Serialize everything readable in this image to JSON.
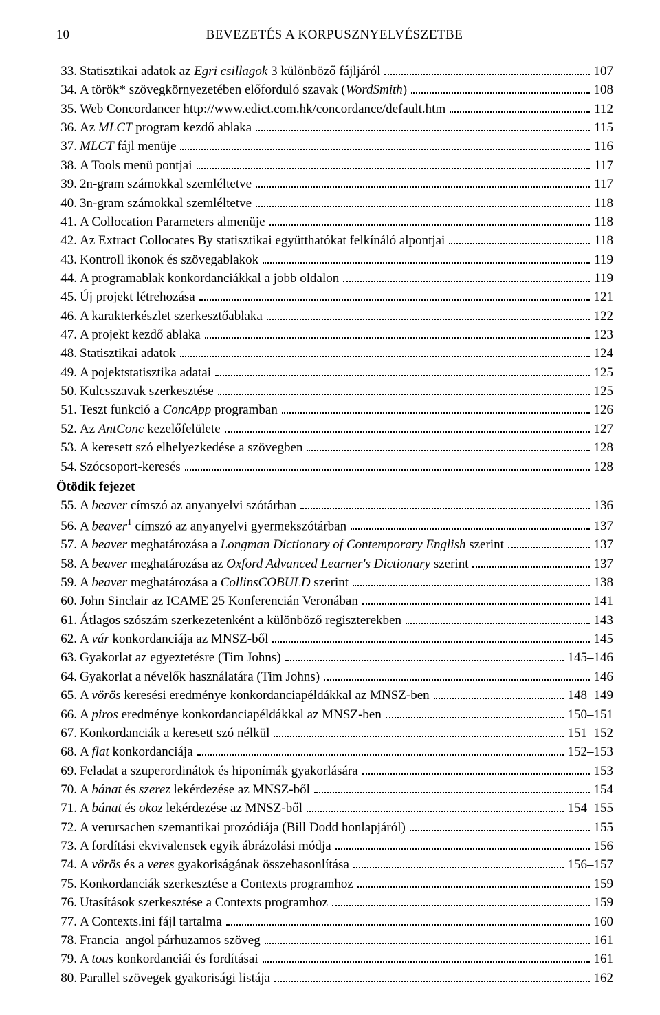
{
  "header": {
    "page_number": "10",
    "title": "BEVEZETÉS A KORPUSZNYELVÉSZETBE"
  },
  "sections": [
    {
      "title": null,
      "entries": [
        {
          "num": "33.",
          "parts": [
            {
              "t": "Statisztikai adatok az "
            },
            {
              "t": "Egri csillagok",
              "i": true
            },
            {
              "t": " 3 különböző fájljáról"
            }
          ],
          "page": "107"
        },
        {
          "num": "34.",
          "parts": [
            {
              "t": "A török* szövegkörnyezetében előforduló szavak ("
            },
            {
              "t": "WordSmith",
              "i": true
            },
            {
              "t": ")"
            }
          ],
          "page": "108"
        },
        {
          "num": "35.",
          "parts": [
            {
              "t": "Web Concordancer http://www.edict.com.hk/concordance/default.htm"
            }
          ],
          "page": "112"
        },
        {
          "num": "36.",
          "parts": [
            {
              "t": "Az "
            },
            {
              "t": "MLCT",
              "i": true
            },
            {
              "t": " program kezdő ablaka"
            }
          ],
          "page": "115"
        },
        {
          "num": "37.",
          "parts": [
            {
              "t": "MLCT",
              "i": true
            },
            {
              "t": " fájl menüje"
            }
          ],
          "page": "116"
        },
        {
          "num": "38.",
          "parts": [
            {
              "t": "A Tools menü pontjai"
            }
          ],
          "page": "117"
        },
        {
          "num": "39.",
          "parts": [
            {
              "t": "2n-gram számokkal szemléltetve"
            }
          ],
          "page": "117"
        },
        {
          "num": "40.",
          "parts": [
            {
              "t": "3n-gram számokkal szemléltetve"
            }
          ],
          "page": "118"
        },
        {
          "num": "41.",
          "parts": [
            {
              "t": "A Collocation Parameters almenüje"
            }
          ],
          "page": "118"
        },
        {
          "num": "42.",
          "parts": [
            {
              "t": "Az Extract Collocates By statisztikai együtthatókat felkínáló alpontjai"
            }
          ],
          "page": "118"
        },
        {
          "num": "43.",
          "parts": [
            {
              "t": "Kontroll ikonok és szövegablakok"
            }
          ],
          "page": "119"
        },
        {
          "num": "44.",
          "parts": [
            {
              "t": "A programablak konkordanciákkal a jobb oldalon"
            }
          ],
          "page": "119"
        },
        {
          "num": "45.",
          "parts": [
            {
              "t": "Új projekt létrehozása"
            }
          ],
          "page": "121"
        },
        {
          "num": "46.",
          "parts": [
            {
              "t": "A karakterkészlet szerkesztőablaka"
            }
          ],
          "page": "122"
        },
        {
          "num": "47.",
          "parts": [
            {
              "t": "A projekt kezdő ablaka"
            }
          ],
          "page": "123"
        },
        {
          "num": "48.",
          "parts": [
            {
              "t": "Statisztikai adatok"
            }
          ],
          "page": "124"
        },
        {
          "num": "49.",
          "parts": [
            {
              "t": "A pojektstatisztika adatai"
            }
          ],
          "page": "125"
        },
        {
          "num": "50.",
          "parts": [
            {
              "t": "Kulcsszavak szerkesztése"
            }
          ],
          "page": "125"
        },
        {
          "num": "51.",
          "parts": [
            {
              "t": "Teszt funkció a "
            },
            {
              "t": "ConcApp",
              "i": true
            },
            {
              "t": " programban"
            }
          ],
          "page": "126"
        },
        {
          "num": "52.",
          "parts": [
            {
              "t": "Az "
            },
            {
              "t": "AntConc",
              "i": true
            },
            {
              "t": " kezelőfelülete"
            }
          ],
          "page": "127"
        },
        {
          "num": "53.",
          "parts": [
            {
              "t": "A keresett szó elhelyezkedése a szövegben"
            }
          ],
          "page": "128"
        },
        {
          "num": "54.",
          "parts": [
            {
              "t": "Szócsoport-keresés"
            }
          ],
          "page": "128"
        }
      ]
    },
    {
      "title": "Ötödik fejezet",
      "entries": [
        {
          "num": "55.",
          "parts": [
            {
              "t": "A "
            },
            {
              "t": "beaver",
              "i": true
            },
            {
              "t": " címszó az anyanyelvi szótárban"
            }
          ],
          "page": "136"
        },
        {
          "num": "56.",
          "parts": [
            {
              "t": "A "
            },
            {
              "t": "beaver",
              "i": true
            },
            {
              "t": "1",
              "sup": true
            },
            {
              "t": " címszó az anyanyelvi gyermekszótárban"
            }
          ],
          "page": "137"
        },
        {
          "num": "57.",
          "parts": [
            {
              "t": "A "
            },
            {
              "t": "beaver",
              "i": true
            },
            {
              "t": " meghatározása a "
            },
            {
              "t": "Longman Dictionary of Contemporary English",
              "i": true
            },
            {
              "t": " szerint"
            }
          ],
          "page": "137"
        },
        {
          "num": "58.",
          "parts": [
            {
              "t": "A "
            },
            {
              "t": "beaver",
              "i": true
            },
            {
              "t": " meghatározása az "
            },
            {
              "t": "Oxford Advanced Learner's Dictionary",
              "i": true
            },
            {
              "t": " szerint"
            }
          ],
          "page": "137"
        },
        {
          "num": "59.",
          "parts": [
            {
              "t": "A "
            },
            {
              "t": "beaver",
              "i": true
            },
            {
              "t": " meghatározása a "
            },
            {
              "t": "CollinsCOBULD",
              "i": true
            },
            {
              "t": " szerint"
            }
          ],
          "page": "138"
        },
        {
          "num": "60.",
          "parts": [
            {
              "t": "John Sinclair az ICAME 25 Konferencián Veronában"
            }
          ],
          "page": "141"
        },
        {
          "num": "61.",
          "parts": [
            {
              "t": "Átlagos szószám szerkezetenként a különböző regiszterekben"
            }
          ],
          "page": "143"
        },
        {
          "num": "62.",
          "parts": [
            {
              "t": "A "
            },
            {
              "t": "vár",
              "i": true
            },
            {
              "t": " konkordanciája az MNSZ-ből"
            }
          ],
          "page": "145"
        },
        {
          "num": "63.",
          "parts": [
            {
              "t": "Gyakorlat az egyeztetésre (Tim Johns)"
            }
          ],
          "page": "145–146"
        },
        {
          "num": "64.",
          "parts": [
            {
              "t": "Gyakorlat a névelők használatára (Tim Johns)"
            }
          ],
          "page": "146"
        },
        {
          "num": "65.",
          "parts": [
            {
              "t": "A "
            },
            {
              "t": "vörös",
              "i": true
            },
            {
              "t": " keresési eredménye konkordanciapéldákkal az MNSZ-ben"
            }
          ],
          "page": "148–149"
        },
        {
          "num": "66.",
          "parts": [
            {
              "t": "A "
            },
            {
              "t": "piros",
              "i": true
            },
            {
              "t": " eredménye konkordanciapéldákkal az MNSZ-ben"
            }
          ],
          "page": "150–151"
        },
        {
          "num": "67.",
          "parts": [
            {
              "t": "Konkordanciák a keresett szó nélkül"
            }
          ],
          "page": "151–152"
        },
        {
          "num": "68.",
          "parts": [
            {
              "t": "A "
            },
            {
              "t": "flat",
              "i": true
            },
            {
              "t": " konkordanciája"
            }
          ],
          "page": "152–153"
        },
        {
          "num": "69.",
          "parts": [
            {
              "t": "Feladat a szuperordinátok és hiponímák gyakorlására"
            }
          ],
          "page": "153"
        },
        {
          "num": "70.",
          "parts": [
            {
              "t": "A "
            },
            {
              "t": "bánat",
              "i": true
            },
            {
              "t": " és "
            },
            {
              "t": "szerez",
              "i": true
            },
            {
              "t": " lekérdezése az MNSZ-ből"
            }
          ],
          "page": "154"
        },
        {
          "num": "71.",
          "parts": [
            {
              "t": "A "
            },
            {
              "t": "bánat",
              "i": true
            },
            {
              "t": " és "
            },
            {
              "t": "okoz",
              "i": true
            },
            {
              "t": " lekérdezése az MNSZ-ből"
            }
          ],
          "page": "154–155"
        },
        {
          "num": "72.",
          "parts": [
            {
              "t": "A verursachen szemantikai prozódiája (Bill Dodd honlapjáról)"
            }
          ],
          "page": "155"
        },
        {
          "num": "73.",
          "parts": [
            {
              "t": "A fordítási ekvivalensek egyik ábrázolási módja"
            }
          ],
          "page": "156"
        },
        {
          "num": "74.",
          "parts": [
            {
              "t": "A "
            },
            {
              "t": "vörös",
              "i": true
            },
            {
              "t": " és a "
            },
            {
              "t": "veres",
              "i": true
            },
            {
              "t": " gyakoriságának összehasonlítása"
            }
          ],
          "page": "156–157"
        },
        {
          "num": "75.",
          "parts": [
            {
              "t": "Konkordanciák szerkesztése a Contexts programhoz"
            }
          ],
          "page": "159"
        },
        {
          "num": "76.",
          "parts": [
            {
              "t": "Utasítások szerkesztése a Contexts programhoz"
            }
          ],
          "page": "159"
        },
        {
          "num": "77.",
          "parts": [
            {
              "t": "A Contexts.ini fájl tartalma"
            }
          ],
          "page": "160"
        },
        {
          "num": "78.",
          "parts": [
            {
              "t": "Francia–angol párhuzamos szöveg"
            }
          ],
          "page": "161"
        },
        {
          "num": "79.",
          "parts": [
            {
              "t": "A "
            },
            {
              "t": "tous",
              "i": true
            },
            {
              "t": " konkordanciái és fordításai"
            }
          ],
          "page": "161"
        },
        {
          "num": "80.",
          "parts": [
            {
              "t": "Parallel szövegek gyakorisági listája"
            }
          ],
          "page": "162"
        }
      ]
    }
  ]
}
